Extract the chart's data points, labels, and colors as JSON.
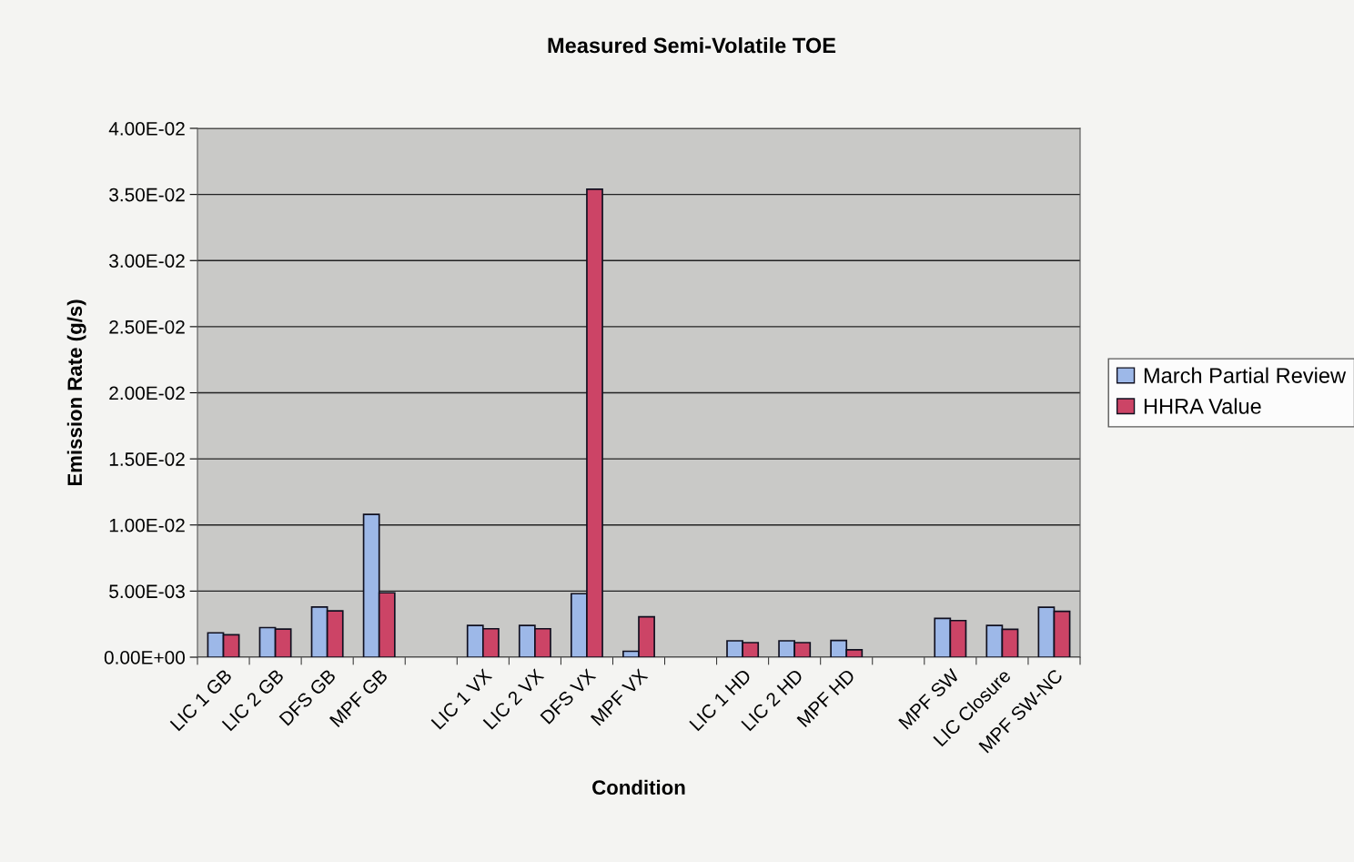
{
  "chart_data": {
    "type": "bar",
    "title": "Measured Semi-Volatile TOE",
    "xlabel": "Condition",
    "ylabel": "Emission Rate (g/s)",
    "categories": [
      "LIC 1 GB",
      "LIC 2 GB",
      "DFS GB",
      "MPF GB",
      null,
      "LIC 1 VX",
      "LIC 2 VX",
      "DFS VX",
      "MPF VX",
      null,
      "LIC 1 HD",
      "LIC 2 HD",
      "MPF HD",
      null,
      "MPF SW",
      "LIC Closure",
      "MPF SW-NC"
    ],
    "series": [
      {
        "name": "March Partial Review",
        "color": "#9db8e8",
        "values": [
          0.00184,
          0.00224,
          0.0038,
          0.0108,
          null,
          0.0024,
          0.0024,
          0.0048,
          0.00045,
          null,
          0.00124,
          0.00124,
          0.00127,
          null,
          0.00293,
          0.0024,
          0.00378
        ]
      },
      {
        "name": "HHRA Value",
        "color": "#cc4466",
        "values": [
          0.0017,
          0.00212,
          0.0035,
          0.00487,
          null,
          0.00215,
          0.00215,
          0.0354,
          0.00305,
          null,
          0.0011,
          0.0011,
          0.00056,
          null,
          0.00277,
          0.00211,
          0.00347
        ]
      }
    ],
    "ylim": [
      0,
      0.04
    ],
    "yticks": [
      {
        "value": 0,
        "label": "0.00E+00"
      },
      {
        "value": 0.005,
        "label": "5.00E-03"
      },
      {
        "value": 0.01,
        "label": "1.00E-02"
      },
      {
        "value": 0.015,
        "label": "1.50E-02"
      },
      {
        "value": 0.02,
        "label": "2.00E-02"
      },
      {
        "value": 0.025,
        "label": "2.50E-02"
      },
      {
        "value": 0.03,
        "label": "3.00E-02"
      },
      {
        "value": 0.035,
        "label": "3.50E-02"
      },
      {
        "value": 0.04,
        "label": "4.00E-02"
      }
    ],
    "grid": "y",
    "legend": "right"
  }
}
